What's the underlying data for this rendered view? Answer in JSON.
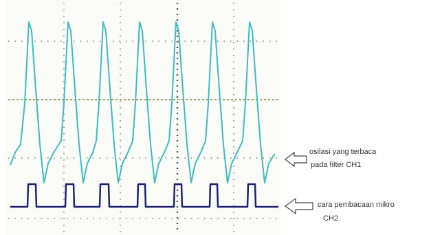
{
  "annotations": [
    {
      "lines": [
        "osilasi yang terbaca",
        "pada filter  CH1"
      ]
    },
    {
      "lines": [
        "cara pembacaan mikro",
        "CH2"
      ]
    }
  ]
}
